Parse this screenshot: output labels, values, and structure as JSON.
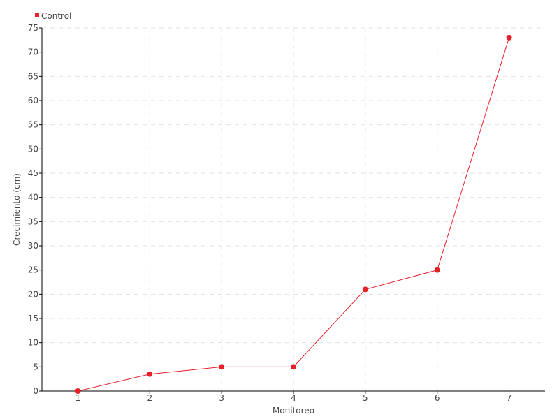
{
  "chart_data": {
    "type": "line",
    "title": "",
    "xlabel": "Monitoreo",
    "ylabel": "Crecimiento (cm)",
    "x": [
      1,
      2,
      3,
      4,
      5,
      6,
      7
    ],
    "xticks": [
      "1",
      "2",
      "3",
      "4",
      "5",
      "6",
      "7"
    ],
    "xlim": [
      0.5,
      7.5
    ],
    "ylim": [
      0,
      75
    ],
    "yticks": [
      "0",
      "5",
      "10",
      "15",
      "20",
      "25",
      "30",
      "35",
      "40",
      "45",
      "50",
      "55",
      "60",
      "65",
      "70",
      "75"
    ],
    "grid": true,
    "legend": "top-left",
    "series": [
      {
        "name": "Control",
        "color": "#e8202a",
        "values": [
          0,
          3.5,
          5,
          5,
          21,
          25,
          73
        ]
      }
    ]
  }
}
